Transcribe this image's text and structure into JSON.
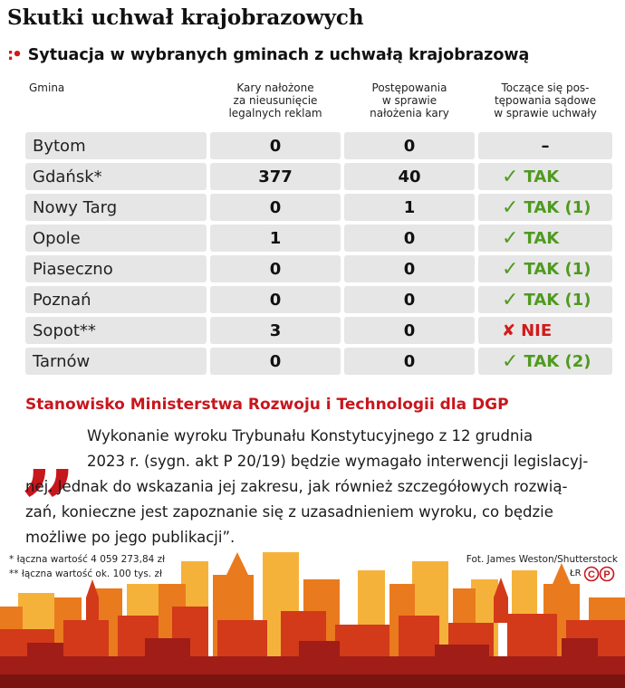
{
  "title": "Skutki uchwał krajobrazowych",
  "subtitle": "Sytuacja w wybranych gminach z uchwałą krajobrazową",
  "subtitle_marker": ":•",
  "table": {
    "headers": {
      "gmina": "Gmina",
      "kary": [
        "Kary nałożone",
        "za nieusunięcie",
        "legalnych reklam"
      ],
      "postepowania": [
        "Postępowania",
        "w sprawie",
        "nałożenia kary"
      ],
      "sadowe": [
        "Toczące się pos-",
        "tępowania sądowe",
        "w sprawie uchwały"
      ]
    },
    "rows": [
      {
        "gmina": "Bytom",
        "kary": "0",
        "postepowania": "0",
        "status": "–",
        "status_type": "none"
      },
      {
        "gmina": "Gdańsk*",
        "kary": "377",
        "postepowania": "40",
        "status": "TAK",
        "status_type": "yes"
      },
      {
        "gmina": "Nowy Targ",
        "kary": "0",
        "postepowania": "1",
        "status": "TAK (1)",
        "status_type": "yes"
      },
      {
        "gmina": "Opole",
        "kary": "1",
        "postepowania": "0",
        "status": "TAK",
        "status_type": "yes"
      },
      {
        "gmina": "Piaseczno",
        "kary": "0",
        "postepowania": "0",
        "status": "TAK (1)",
        "status_type": "yes"
      },
      {
        "gmina": "Poznań",
        "kary": "0",
        "postepowania": "0",
        "status": "TAK (1)",
        "status_type": "yes"
      },
      {
        "gmina": "Sopot**",
        "kary": "3",
        "postepowania": "0",
        "status": "NIE",
        "status_type": "no"
      },
      {
        "gmina": "Tarnów",
        "kary": "0",
        "postepowania": "0",
        "status": "TAK (2)",
        "status_type": "yes"
      }
    ]
  },
  "ministry_heading": "Stanowisko Ministerstwa Rozwoju i Technologii dla DGP",
  "quote_lines": [
    "Wykonanie wyroku Trybunału Konstytucyjnego z 12 grudnia",
    "2023 r. (sygn. akt P 20/19) będzie wymagało interwencji legislacyj-",
    "nej. Jednak do wskazania jej zakresu, jak również szczegółowych rozwią-",
    "zań, konieczne jest zapoznanie się z uzasadnieniem wyroku, co będzie",
    "możliwe po jego publikacji”."
  ],
  "footnotes": [
    "* łączna wartość 4 059 273,84 zł",
    "** łączna wartość ok. 100 tys. zł"
  ],
  "photo_credit": "Fot. James Weston/Shutterstock",
  "author_initials": "ŁR",
  "cp_logo_text": "CP",
  "colors": {
    "accent_red": "#c8161d",
    "yes_green": "#4f9a1f",
    "row_gray": "#e6e6e6"
  },
  "icons": {
    "yes": "check-icon",
    "no": "cross-icon"
  }
}
